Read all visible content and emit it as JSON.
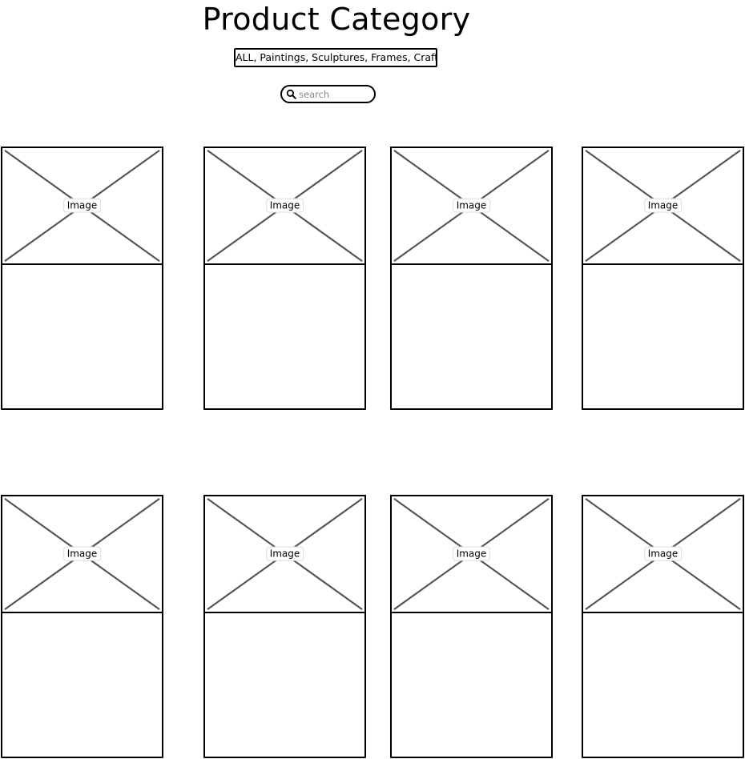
{
  "header": {
    "title": "Product Category"
  },
  "filter": {
    "categories_label": "ALL, Paintings, Sculptures, Frames, Crafts"
  },
  "search": {
    "placeholder": "search",
    "value": "",
    "icon": "search-icon"
  },
  "products": [
    {
      "image_label": "Image"
    },
    {
      "image_label": "Image"
    },
    {
      "image_label": "Image"
    },
    {
      "image_label": "Image"
    },
    {
      "image_label": "Image"
    },
    {
      "image_label": "Image"
    },
    {
      "image_label": "Image"
    },
    {
      "image_label": "Image"
    }
  ]
}
